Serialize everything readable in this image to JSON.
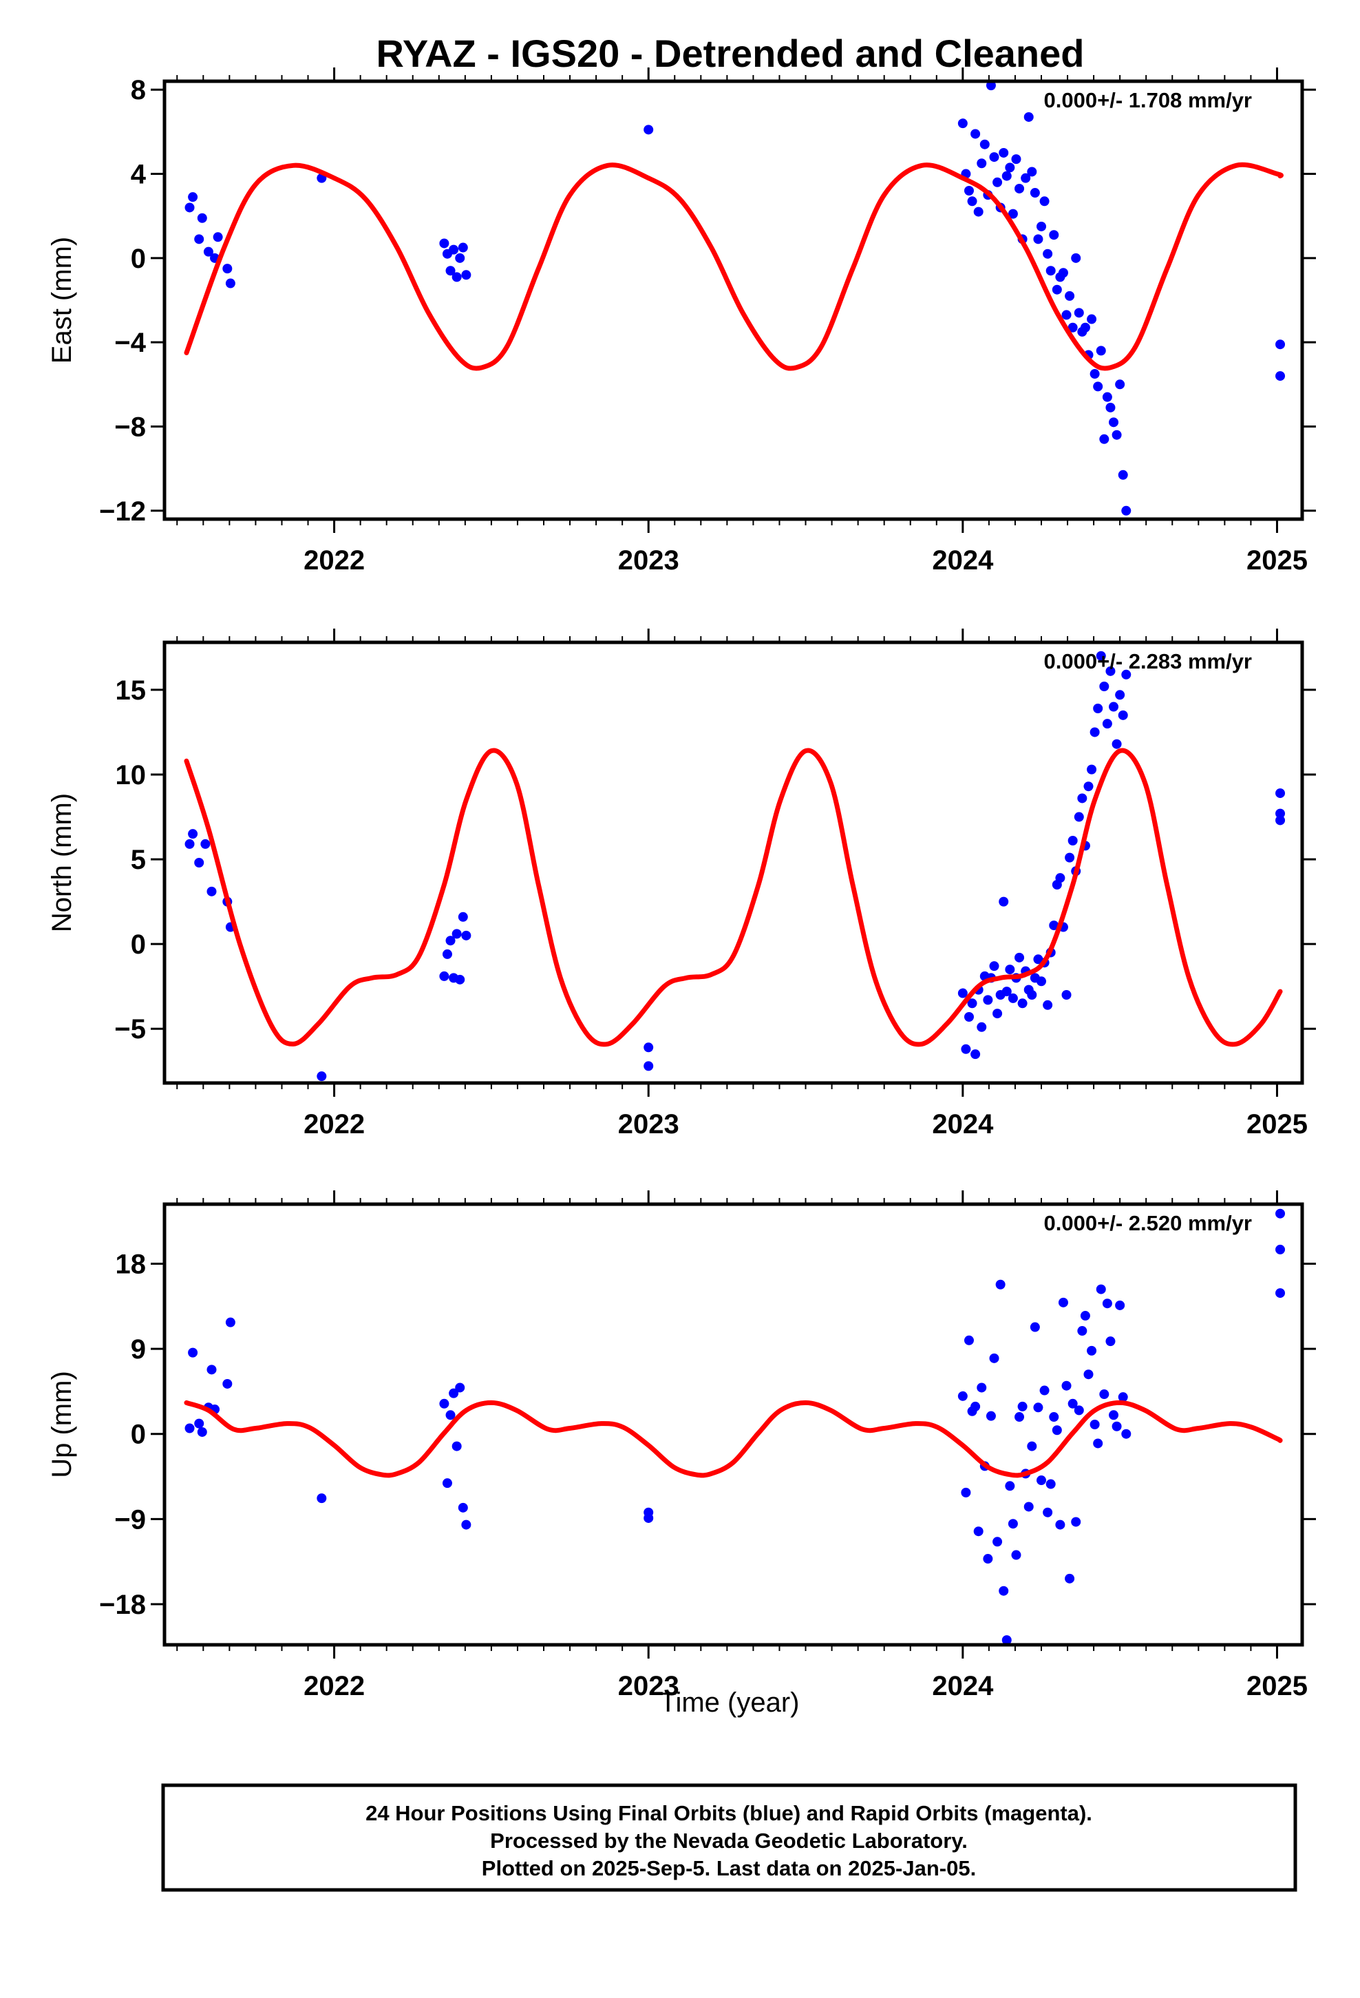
{
  "title": "RYAZ - IGS20 - Detrended and Cleaned",
  "xlabel": "Time (year)",
  "footer": [
    "24 Hour Positions Using Final Orbits (blue) and Rapid Orbits (magenta).",
    "Processed by the Nevada Geodetic Laboratory.",
    "Plotted on 2025-Sep-5. Last data on 2025-Jan-05."
  ],
  "colors": {
    "data": "#0000ff",
    "model": "#ff0000",
    "axis": "#000000"
  },
  "chart_data": [
    {
      "type": "scatter",
      "component": "east",
      "ylabel": "East (mm)",
      "rate": "0.000+/- 1.708 mm/yr",
      "xlim": [
        2021.46,
        2025.08
      ],
      "ylim": [
        -12.4,
        8.4
      ],
      "yticks": [
        -12,
        -8,
        -4,
        0,
        4,
        8
      ],
      "xticks": [
        2022,
        2023,
        2024,
        2025
      ],
      "model": {
        "name": "",
        "x": [
          2021.53,
          2021.65,
          2021.75,
          2021.87,
          2022.0,
          2022.1,
          2022.2,
          2022.3,
          2022.4,
          2022.47,
          2022.55,
          2022.65,
          2022.75,
          2022.87,
          2023.0,
          2023.1,
          2023.2,
          2023.3,
          2023.4,
          2023.47,
          2023.55,
          2023.65,
          2023.75,
          2023.87,
          2024.0,
          2024.1,
          2024.2,
          2024.3,
          2024.4,
          2024.47,
          2024.55,
          2024.65,
          2024.75,
          2024.87,
          2025.0,
          2025.01
        ],
        "y": [
          -4.5,
          0.5,
          3.5,
          4.4,
          3.8,
          2.8,
          0.5,
          -2.6,
          -4.8,
          -5.2,
          -4.2,
          -0.5,
          3.0,
          4.4,
          3.8,
          2.8,
          0.5,
          -2.6,
          -4.8,
          -5.2,
          -4.2,
          -0.5,
          3.0,
          4.4,
          3.8,
          2.8,
          0.5,
          -2.6,
          -4.8,
          -5.2,
          -4.2,
          -0.5,
          3.0,
          4.4,
          4.0,
          3.9
        ]
      },
      "series": [
        {
          "name": "",
          "x": [
            2021.54,
            2021.55,
            2021.57,
            2021.58,
            2021.6,
            2021.62,
            2021.63,
            2021.66,
            2021.67,
            2021.96,
            2022.35,
            2022.36,
            2022.37,
            2022.38,
            2022.39,
            2022.4,
            2022.41,
            2022.42,
            2023.0,
            2024.0,
            2024.01,
            2024.02,
            2024.03,
            2024.04,
            2024.05,
            2024.06,
            2024.07,
            2024.08,
            2024.09,
            2024.1,
            2024.11,
            2024.12,
            2024.13,
            2024.14,
            2024.15,
            2024.16,
            2024.17,
            2024.18,
            2024.19,
            2024.2,
            2024.21,
            2024.22,
            2024.23,
            2024.24,
            2024.25,
            2024.26,
            2024.27,
            2024.28,
            2024.29,
            2024.3,
            2024.31,
            2024.32,
            2024.33,
            2024.34,
            2024.35,
            2024.36,
            2024.37,
            2024.38,
            2024.39,
            2024.4,
            2024.41,
            2024.42,
            2024.43,
            2024.44,
            2024.45,
            2024.46,
            2024.47,
            2024.48,
            2024.49,
            2024.5,
            2024.51,
            2024.52,
            2025.01,
            2025.01
          ],
          "y": [
            2.4,
            2.9,
            0.9,
            1.9,
            0.3,
            0.0,
            1.0,
            -0.5,
            -1.2,
            3.8,
            0.7,
            0.2,
            -0.6,
            0.4,
            -0.9,
            0.0,
            0.5,
            -0.8,
            6.1,
            6.4,
            4.0,
            3.2,
            2.7,
            5.9,
            2.2,
            4.5,
            5.4,
            3.0,
            8.2,
            4.8,
            3.6,
            2.4,
            5.0,
            3.9,
            4.3,
            2.1,
            4.7,
            3.3,
            0.9,
            3.8,
            6.7,
            4.1,
            3.1,
            0.9,
            1.5,
            2.7,
            0.2,
            -0.6,
            1.1,
            -1.5,
            -0.9,
            -0.7,
            -2.7,
            -1.8,
            -3.3,
            0.0,
            -2.6,
            -3.5,
            -3.3,
            -4.6,
            -2.9,
            -5.5,
            -6.1,
            -4.4,
            -8.6,
            -6.6,
            -7.1,
            -7.8,
            -8.4,
            -6.0,
            -10.3,
            -12.0,
            -4.1,
            -5.6
          ]
        }
      ]
    },
    {
      "type": "scatter",
      "component": "north",
      "ylabel": "North (mm)",
      "rate": "0.000+/- 2.283 mm/yr",
      "xlim": [
        2021.46,
        2025.08
      ],
      "ylim": [
        -8.2,
        17.8
      ],
      "yticks": [
        -5,
        0,
        5,
        10,
        15
      ],
      "xticks": [
        2022,
        2023,
        2024,
        2025
      ],
      "model": {
        "name": "",
        "x": [
          2021.53,
          2021.6,
          2021.7,
          2021.8,
          2021.87,
          2021.95,
          2022.05,
          2022.12,
          2022.2,
          2022.27,
          2022.35,
          2022.42,
          2022.5,
          2022.58,
          2022.65,
          2022.72,
          2022.8,
          2022.87,
          2022.95,
          2023.05,
          2023.12,
          2023.2,
          2023.27,
          2023.35,
          2023.42,
          2023.5,
          2023.58,
          2023.65,
          2023.72,
          2023.8,
          2023.87,
          2023.95,
          2024.05,
          2024.12,
          2024.2,
          2024.27,
          2024.35,
          2024.42,
          2024.5,
          2024.58,
          2024.65,
          2024.72,
          2024.8,
          2024.87,
          2024.95,
          2025.01
        ],
        "y": [
          10.8,
          6.8,
          0.0,
          -4.8,
          -5.9,
          -4.7,
          -2.5,
          -2.0,
          -1.8,
          -0.7,
          3.5,
          8.5,
          11.4,
          9.5,
          3.5,
          -2.0,
          -5.2,
          -5.9,
          -4.7,
          -2.5,
          -2.0,
          -1.8,
          -0.7,
          3.5,
          8.5,
          11.4,
          9.5,
          3.5,
          -2.0,
          -5.2,
          -5.9,
          -4.7,
          -2.5,
          -2.0,
          -1.8,
          -0.7,
          3.5,
          8.5,
          11.4,
          9.5,
          3.5,
          -2.0,
          -5.2,
          -5.9,
          -4.7,
          -2.8
        ]
      },
      "series": [
        {
          "name": "",
          "x": [
            2021.54,
            2021.55,
            2021.57,
            2021.59,
            2021.61,
            2021.66,
            2021.67,
            2021.96,
            2022.35,
            2022.36,
            2022.37,
            2022.38,
            2022.39,
            2022.4,
            2022.41,
            2022.42,
            2023.0,
            2023.0,
            2024.0,
            2024.01,
            2024.02,
            2024.03,
            2024.04,
            2024.05,
            2024.06,
            2024.07,
            2024.08,
            2024.09,
            2024.1,
            2024.11,
            2024.12,
            2024.13,
            2024.14,
            2024.15,
            2024.16,
            2024.17,
            2024.18,
            2024.19,
            2024.2,
            2024.21,
            2024.22,
            2024.23,
            2024.24,
            2024.25,
            2024.26,
            2024.27,
            2024.28,
            2024.29,
            2024.3,
            2024.31,
            2024.32,
            2024.33,
            2024.34,
            2024.35,
            2024.36,
            2024.37,
            2024.38,
            2024.39,
            2024.4,
            2024.41,
            2024.42,
            2024.43,
            2024.44,
            2024.45,
            2024.46,
            2024.47,
            2024.48,
            2024.49,
            2024.5,
            2024.51,
            2024.52,
            2025.01,
            2025.01,
            2025.01
          ],
          "y": [
            5.9,
            6.5,
            4.8,
            5.9,
            3.1,
            2.5,
            1.0,
            -7.8,
            -1.9,
            -0.6,
            0.2,
            -2.0,
            0.6,
            -2.1,
            1.6,
            0.5,
            -6.1,
            -7.2,
            -2.9,
            -6.2,
            -4.3,
            -3.5,
            -6.5,
            -2.7,
            -4.9,
            -1.9,
            -3.3,
            -2.0,
            -1.3,
            -4.1,
            -3.0,
            2.5,
            -2.8,
            -1.5,
            -3.2,
            -2.0,
            -0.8,
            -3.5,
            -1.6,
            -2.7,
            -3.0,
            -2.0,
            -0.9,
            -2.2,
            -1.1,
            -3.6,
            -0.5,
            1.1,
            3.5,
            3.9,
            1.0,
            -3.0,
            5.1,
            6.1,
            4.3,
            7.5,
            8.6,
            5.8,
            9.3,
            10.3,
            12.5,
            13.9,
            17.0,
            15.2,
            13.0,
            16.1,
            14.0,
            11.8,
            14.7,
            13.5,
            15.9,
            8.9,
            7.7,
            7.3
          ]
        }
      ]
    },
    {
      "type": "scatter",
      "component": "up",
      "ylabel": "Up (mm)",
      "rate": "0.000+/- 2.520 mm/yr",
      "xlim": [
        2021.46,
        2025.08
      ],
      "ylim": [
        -22.3,
        24.3
      ],
      "yticks": [
        -18,
        -9,
        0,
        9,
        18
      ],
      "xticks": [
        2022,
        2023,
        2024,
        2025
      ],
      "model": {
        "name": "",
        "x": [
          2021.53,
          2021.6,
          2021.68,
          2021.75,
          2021.85,
          2021.92,
          2022.0,
          2022.08,
          2022.15,
          2022.2,
          2022.27,
          2022.35,
          2022.42,
          2022.5,
          2022.58,
          2022.68,
          2022.75,
          2022.85,
          2022.92,
          2023.0,
          2023.08,
          2023.15,
          2023.2,
          2023.27,
          2023.35,
          2023.42,
          2023.5,
          2023.58,
          2023.68,
          2023.75,
          2023.85,
          2023.92,
          2024.0,
          2024.08,
          2024.15,
          2024.2,
          2024.27,
          2024.35,
          2024.42,
          2024.5,
          2024.58,
          2024.68,
          2024.75,
          2024.85,
          2024.92,
          2025.0,
          2025.01
        ],
        "y": [
          3.3,
          2.5,
          0.5,
          0.6,
          1.1,
          0.7,
          -1.2,
          -3.5,
          -4.3,
          -4.2,
          -3.0,
          0.1,
          2.5,
          3.3,
          2.5,
          0.5,
          0.6,
          1.1,
          0.7,
          -1.2,
          -3.5,
          -4.3,
          -4.2,
          -3.0,
          0.1,
          2.5,
          3.3,
          2.5,
          0.5,
          0.6,
          1.1,
          0.7,
          -1.2,
          -3.5,
          -4.3,
          -4.2,
          -3.0,
          0.1,
          2.5,
          3.3,
          2.5,
          0.5,
          0.6,
          1.1,
          0.7,
          -0.5,
          -0.7
        ]
      },
      "series": [
        {
          "name": "",
          "x": [
            2021.54,
            2021.55,
            2021.57,
            2021.58,
            2021.6,
            2021.61,
            2021.62,
            2021.66,
            2021.67,
            2021.96,
            2022.35,
            2022.36,
            2022.37,
            2022.38,
            2022.39,
            2022.4,
            2022.41,
            2022.42,
            2023.0,
            2023.0,
            2024.0,
            2024.01,
            2024.02,
            2024.03,
            2024.04,
            2024.05,
            2024.06,
            2024.07,
            2024.08,
            2024.09,
            2024.1,
            2024.11,
            2024.12,
            2024.13,
            2024.14,
            2024.15,
            2024.16,
            2024.17,
            2024.18,
            2024.19,
            2024.2,
            2024.21,
            2024.22,
            2024.23,
            2024.24,
            2024.25,
            2024.26,
            2024.27,
            2024.28,
            2024.29,
            2024.3,
            2024.31,
            2024.32,
            2024.33,
            2024.34,
            2024.35,
            2024.36,
            2024.37,
            2024.38,
            2024.39,
            2024.4,
            2024.41,
            2024.42,
            2024.43,
            2024.44,
            2024.45,
            2024.46,
            2024.47,
            2024.48,
            2024.49,
            2024.5,
            2024.51,
            2024.52,
            2025.01,
            2025.01,
            2025.01
          ],
          "y": [
            0.6,
            8.6,
            1.1,
            0.2,
            2.8,
            6.8,
            2.6,
            5.3,
            11.8,
            -6.8,
            3.2,
            -5.2,
            2.0,
            4.3,
            -1.3,
            4.9,
            -7.8,
            -9.6,
            -8.3,
            -8.9,
            4.0,
            -6.2,
            9.9,
            2.4,
            2.9,
            -10.3,
            4.9,
            -3.4,
            -13.2,
            1.9,
            8.0,
            -11.4,
            15.8,
            -16.6,
            -21.8,
            -5.5,
            -9.5,
            -12.8,
            1.8,
            2.9,
            -4.2,
            -7.7,
            -1.3,
            11.3,
            2.8,
            -4.9,
            4.6,
            -8.3,
            -5.3,
            1.8,
            0.4,
            -9.6,
            13.9,
            5.1,
            -15.3,
            3.2,
            -9.3,
            2.5,
            10.9,
            12.5,
            6.3,
            8.8,
            1.0,
            -1.0,
            15.3,
            4.2,
            13.8,
            9.8,
            2.0,
            0.8,
            13.6,
            3.9,
            0.0,
            23.3,
            19.5,
            14.9
          ]
        }
      ]
    }
  ]
}
